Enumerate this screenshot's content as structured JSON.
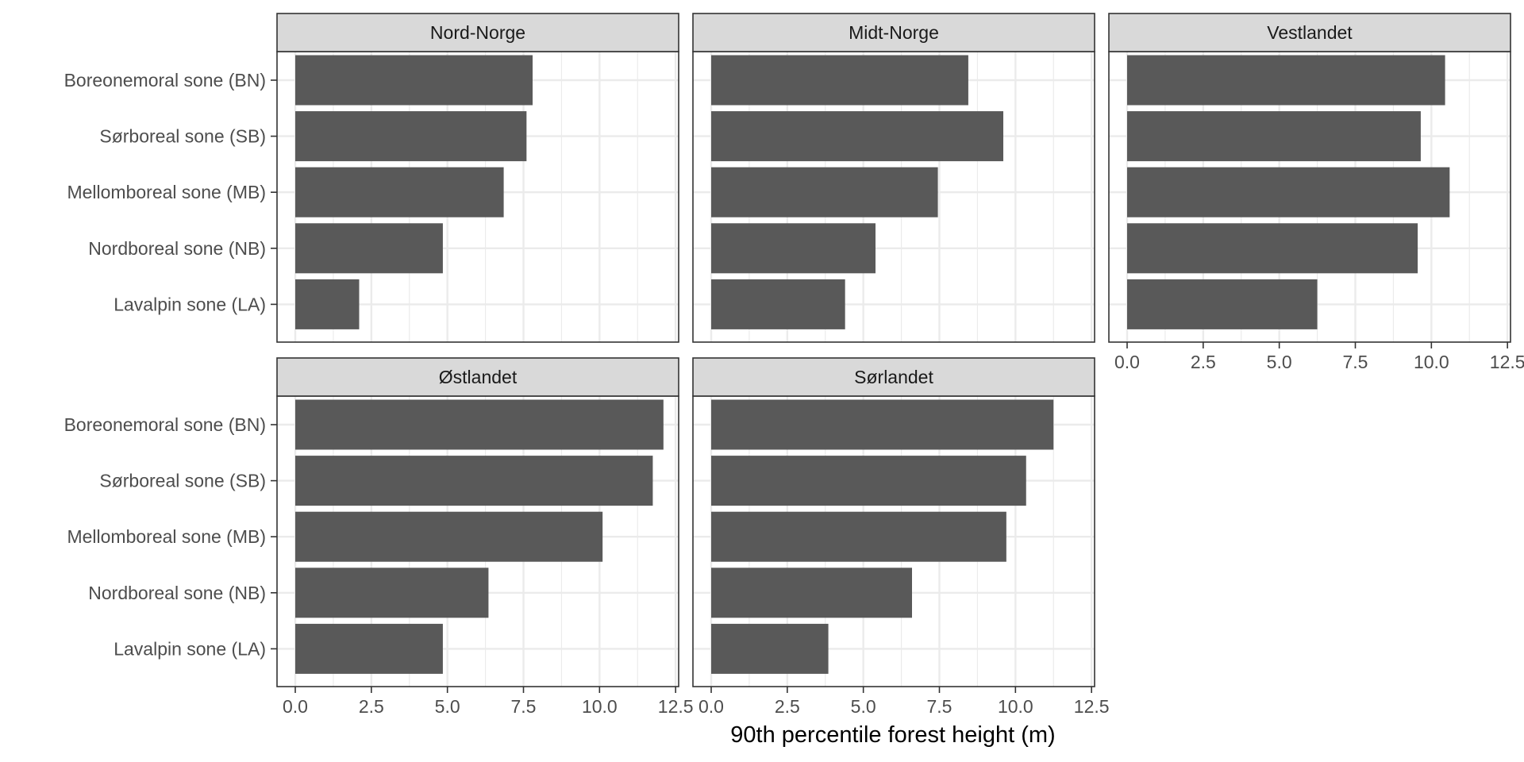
{
  "chart_data": {
    "type": "bar",
    "orientation": "horizontal",
    "faceted": true,
    "categories": [
      "Boreonemoral sone (BN)",
      "Sørboreal sone (SB)",
      "Mellomboreal sone (MB)",
      "Nordboreal sone (NB)",
      "Lavalpin sone (LA)"
    ],
    "panels": [
      {
        "title": "Nord-Norge",
        "values": [
          7.8,
          7.6,
          6.85,
          4.85,
          2.1
        ]
      },
      {
        "title": "Midt-Norge",
        "values": [
          8.45,
          9.6,
          7.45,
          5.4,
          4.4
        ]
      },
      {
        "title": "Vestlandet",
        "values": [
          10.45,
          9.65,
          10.6,
          9.55,
          6.25
        ]
      },
      {
        "title": "Østlandet",
        "values": [
          12.1,
          11.75,
          10.1,
          6.35,
          4.85
        ]
      },
      {
        "title": "Sørlandet",
        "values": [
          11.25,
          10.35,
          9.7,
          6.6,
          3.85
        ]
      }
    ],
    "xlabel": "90th percentile forest height (m)",
    "ylabel": "",
    "xlim": [
      -0.6,
      12.6
    ],
    "x_ticks": [
      0.0,
      2.5,
      5.0,
      7.5,
      10.0,
      12.5
    ],
    "x_tick_labels": [
      "0.0",
      "2.5",
      "5.0",
      "7.5",
      "10.0",
      "12.5"
    ],
    "grid": true,
    "bar_color": "#595959",
    "strip_color": "#d9d9d9",
    "grid_color": "#ebebeb",
    "panel_border_color": "#333333"
  }
}
